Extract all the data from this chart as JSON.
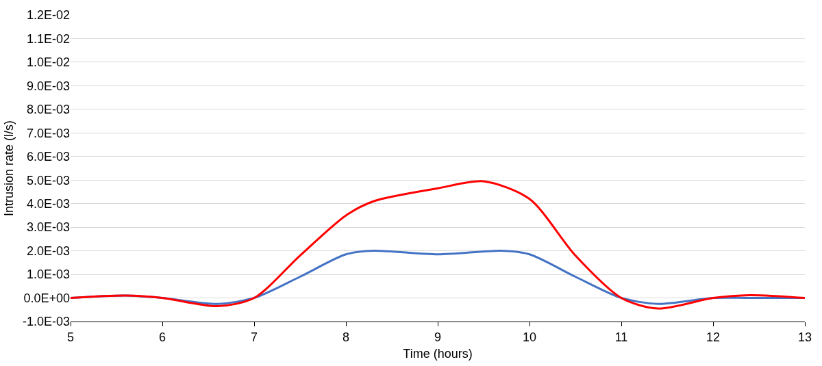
{
  "chart_data": {
    "type": "line",
    "xlabel": "Time (hours)",
    "ylabel": "Intrusion rate (l/s)",
    "grid": "y",
    "marker": "none",
    "line_style": "solid",
    "xlim": [
      5,
      13
    ],
    "xticks": [
      5,
      6,
      7,
      8,
      9,
      10,
      11,
      12,
      13
    ],
    "ylim": [
      -0.001,
      0.012
    ],
    "yticks": [
      {
        "value": -0.001,
        "label": "-1.0E-03"
      },
      {
        "value": 0,
        "label": "0.0E+00"
      },
      {
        "value": 0.001,
        "label": "1.0E-03"
      },
      {
        "value": 0.002,
        "label": "2.0E-03"
      },
      {
        "value": 0.003,
        "label": "3.0E-03"
      },
      {
        "value": 0.004,
        "label": "4.0E-03"
      },
      {
        "value": 0.005,
        "label": "5.0E-03"
      },
      {
        "value": 0.006,
        "label": "6.0E-03"
      },
      {
        "value": 0.007,
        "label": "7.0E-03"
      },
      {
        "value": 0.008,
        "label": "8.0E-03"
      },
      {
        "value": 0.009,
        "label": "9.0E-03"
      },
      {
        "value": 0.01,
        "label": "1.0E-02"
      },
      {
        "value": 0.011,
        "label": "1.1E-02"
      },
      {
        "value": 0.012,
        "label": "1.2E-02"
      }
    ],
    "series": [
      {
        "color": "#4472c4",
        "x": [
          5,
          5.6,
          6,
          6.6,
          7,
          7.5,
          8,
          8.3,
          9,
          9.7,
          10,
          10.5,
          11,
          11.4,
          12,
          12.4,
          13
        ],
        "values": [
          0,
          0.0001,
          0,
          -0.00025,
          0,
          0.0009,
          0.00185,
          0.002,
          0.00185,
          0.002,
          0.00185,
          0.0009,
          0,
          -0.00025,
          0,
          0,
          0
        ]
      },
      {
        "color": "#ff0000",
        "x": [
          5,
          5.6,
          6,
          6.6,
          7,
          7.5,
          8,
          8.3,
          9,
          9.5,
          10,
          10.5,
          11,
          11.4,
          12,
          12.4,
          13
        ],
        "values": [
          0,
          0.0001,
          0,
          -0.00035,
          0,
          0.0018,
          0.0035,
          0.0041,
          0.00465,
          0.00495,
          0.0042,
          0.0018,
          0,
          -0.00045,
          0,
          0.00012,
          0
        ]
      }
    ]
  }
}
